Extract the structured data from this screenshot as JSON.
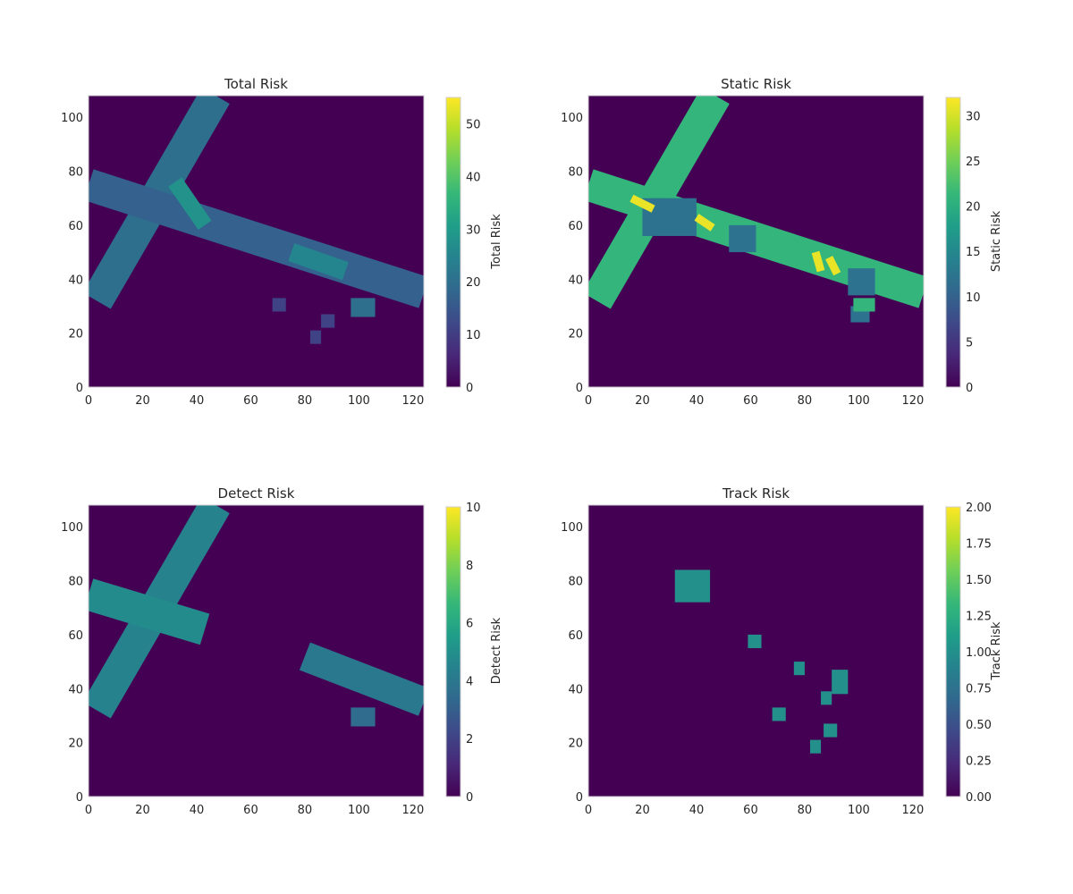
{
  "colormap": [
    "#440154",
    "#482878",
    "#3e4989",
    "#31688e",
    "#26828e",
    "#1f9e89",
    "#35b779",
    "#6ece58",
    "#b5de2b",
    "#fde725"
  ],
  "chart_data": [
    {
      "type": "heatmap",
      "title": "Total Risk",
      "xlabel": "",
      "ylabel": "",
      "xlim": [
        0,
        124
      ],
      "ylim": [
        0,
        108
      ],
      "xticks": [
        "0",
        "20",
        "40",
        "60",
        "80",
        "100",
        "120"
      ],
      "yticks": [
        "0",
        "20",
        "40",
        "60",
        "80",
        "100"
      ],
      "colorbar": {
        "label": "Total Risk",
        "min": 0,
        "max": 55,
        "ticks": [
          "0",
          "10",
          "20",
          "30",
          "40",
          "50"
        ]
      },
      "background": 0,
      "regions": [
        {
          "shape": "band",
          "from": [
            47,
            108
          ],
          "to": [
            3,
            32
          ],
          "width": 12,
          "value": 20
        },
        {
          "shape": "band",
          "from": [
            0,
            75
          ],
          "to": [
            124,
            35
          ],
          "width": 12,
          "value": 17
        },
        {
          "shape": "band",
          "from": [
            32,
            76
          ],
          "to": [
            43,
            60
          ],
          "width": 6,
          "value": 28
        },
        {
          "shape": "band",
          "from": [
            75,
            50
          ],
          "to": [
            95,
            43
          ],
          "width": 7,
          "value": 25
        },
        {
          "shape": "rect",
          "x": [
            68,
            73
          ],
          "y": [
            28,
            33
          ],
          "value": 11
        },
        {
          "shape": "rect",
          "x": [
            86,
            91
          ],
          "y": [
            22,
            27
          ],
          "value": 11
        },
        {
          "shape": "rect",
          "x": [
            82,
            86
          ],
          "y": [
            16,
            21
          ],
          "value": 11
        },
        {
          "shape": "rect",
          "x": [
            97,
            106
          ],
          "y": [
            26,
            33
          ],
          "value": 20
        }
      ]
    },
    {
      "type": "heatmap",
      "title": "Static Risk",
      "xlabel": "",
      "ylabel": "",
      "xlim": [
        0,
        124
      ],
      "ylim": [
        0,
        108
      ],
      "xticks": [
        "0",
        "20",
        "40",
        "60",
        "80",
        "100",
        "120"
      ],
      "yticks": [
        "0",
        "20",
        "40",
        "60",
        "80",
        "100"
      ],
      "colorbar": {
        "label": "Static Risk",
        "min": 0,
        "max": 32,
        "ticks": [
          "0",
          "5",
          "10",
          "15",
          "20",
          "25",
          "30"
        ]
      },
      "background": 0,
      "regions": [
        {
          "shape": "band",
          "from": [
            47,
            108
          ],
          "to": [
            3,
            32
          ],
          "width": 12,
          "value": 21
        },
        {
          "shape": "band",
          "from": [
            0,
            75
          ],
          "to": [
            124,
            35
          ],
          "width": 12,
          "value": 21
        },
        {
          "shape": "rect",
          "x": [
            20,
            40
          ],
          "y": [
            56,
            70
          ],
          "value": 12
        },
        {
          "shape": "rect",
          "x": [
            52,
            62
          ],
          "y": [
            50,
            60
          ],
          "value": 12
        },
        {
          "shape": "rect",
          "x": [
            96,
            106
          ],
          "y": [
            34,
            44
          ],
          "value": 12
        },
        {
          "shape": "band",
          "from": [
            16,
            70
          ],
          "to": [
            24,
            66
          ],
          "width": 3,
          "value": 31
        },
        {
          "shape": "band",
          "from": [
            40,
            63
          ],
          "to": [
            46,
            59
          ],
          "width": 3,
          "value": 31
        },
        {
          "shape": "band",
          "from": [
            84,
            50
          ],
          "to": [
            86,
            43
          ],
          "width": 3,
          "value": 31
        },
        {
          "shape": "band",
          "from": [
            89,
            48
          ],
          "to": [
            92,
            42
          ],
          "width": 3,
          "value": 31
        },
        {
          "shape": "rect",
          "x": [
            97,
            104
          ],
          "y": [
            24,
            30
          ],
          "value": 12
        },
        {
          "shape": "rect",
          "x": [
            98,
            106
          ],
          "y": [
            28,
            33
          ],
          "value": 21
        }
      ]
    },
    {
      "type": "heatmap",
      "title": "Detect Risk",
      "xlabel": "",
      "ylabel": "",
      "xlim": [
        0,
        124
      ],
      "ylim": [
        0,
        108
      ],
      "xticks": [
        "0",
        "20",
        "40",
        "60",
        "80",
        "100",
        "120"
      ],
      "yticks": [
        "0",
        "20",
        "40",
        "60",
        "80",
        "100"
      ],
      "colorbar": {
        "label": "Detect Risk",
        "min": 0,
        "max": 10,
        "ticks": [
          "0",
          "2",
          "4",
          "6",
          "8",
          "10"
        ]
      },
      "background": 0,
      "regions": [
        {
          "shape": "band",
          "from": [
            47,
            108
          ],
          "to": [
            3,
            32
          ],
          "width": 12,
          "value": 4.5
        },
        {
          "shape": "band",
          "from": [
            0,
            75
          ],
          "to": [
            43,
            62
          ],
          "width": 12,
          "value": 4.8
        },
        {
          "shape": "band",
          "from": [
            80,
            52
          ],
          "to": [
            124,
            35
          ],
          "width": 11,
          "value": 4.0
        },
        {
          "shape": "rect",
          "x": [
            97,
            106
          ],
          "y": [
            26,
            33
          ],
          "value": 3.5
        }
      ]
    },
    {
      "type": "heatmap",
      "title": "Track Risk",
      "xlabel": "",
      "ylabel": "",
      "xlim": [
        0,
        124
      ],
      "ylim": [
        0,
        108
      ],
      "xticks": [
        "0",
        "20",
        "40",
        "60",
        "80",
        "100",
        "120"
      ],
      "yticks": [
        "0",
        "20",
        "40",
        "60",
        "80",
        "100"
      ],
      "colorbar": {
        "label": "Track Risk",
        "min": 0,
        "max": 2.0,
        "ticks": [
          "0.00",
          "0.25",
          "0.50",
          "0.75",
          "1.00",
          "1.25",
          "1.50",
          "1.75",
          "2.00"
        ]
      },
      "background": 0,
      "regions": [
        {
          "shape": "rect",
          "x": [
            32,
            45
          ],
          "y": [
            72,
            84
          ],
          "value": 1.0
        },
        {
          "shape": "rect",
          "x": [
            59,
            64
          ],
          "y": [
            55,
            60
          ],
          "value": 1.0
        },
        {
          "shape": "rect",
          "x": [
            76,
            80
          ],
          "y": [
            45,
            50
          ],
          "value": 1.0
        },
        {
          "shape": "rect",
          "x": [
            90,
            96
          ],
          "y": [
            38,
            47
          ],
          "value": 1.0
        },
        {
          "shape": "rect",
          "x": [
            86,
            90
          ],
          "y": [
            34,
            39
          ],
          "value": 1.0
        },
        {
          "shape": "rect",
          "x": [
            68,
            73
          ],
          "y": [
            28,
            33
          ],
          "value": 1.0
        },
        {
          "shape": "rect",
          "x": [
            87,
            92
          ],
          "y": [
            22,
            27
          ],
          "value": 1.0
        },
        {
          "shape": "rect",
          "x": [
            82,
            86
          ],
          "y": [
            16,
            21
          ],
          "value": 1.0
        }
      ]
    }
  ]
}
